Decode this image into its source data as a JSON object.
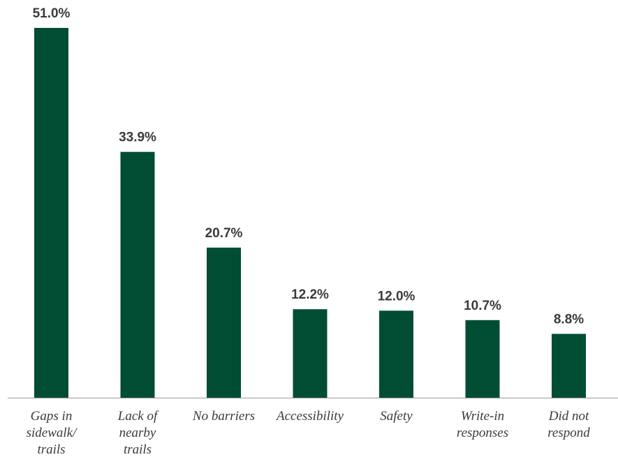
{
  "chart_data": {
    "type": "bar",
    "categories": [
      [
        "Gaps in",
        "sidewalk/",
        "trails"
      ],
      [
        "Lack of",
        "nearby",
        "trails"
      ],
      [
        "No barriers"
      ],
      [
        "Accessibility"
      ],
      [
        "Safety"
      ],
      [
        "Write-in",
        "responses"
      ],
      [
        "Did not",
        "respond"
      ]
    ],
    "values": [
      51.0,
      33.9,
      20.7,
      12.2,
      12.0,
      10.7,
      8.8
    ],
    "value_labels": [
      "51.0%",
      "33.9%",
      "20.7%",
      "12.2%",
      "12.0%",
      "10.7%",
      "8.8%"
    ],
    "title": "",
    "xlabel": "",
    "ylabel": "",
    "ylim": [
      0,
      51.0
    ],
    "grid": false,
    "legend": "none",
    "bar_color": "#004d33",
    "axis_color": "#999999",
    "label_color": "#3a3a3a"
  }
}
